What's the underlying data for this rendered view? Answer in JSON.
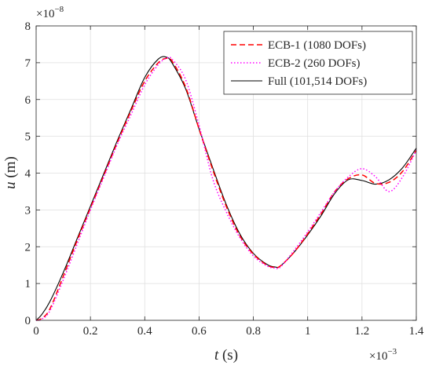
{
  "chart_data": {
    "type": "line",
    "xlabel": {
      "var": "t",
      "unit": " (s)"
    },
    "ylabel": {
      "var": "u",
      "unit": " (m)"
    },
    "x_multiplier": {
      "base": "×10",
      "exp": "−3"
    },
    "y_multiplier": {
      "base": "×10",
      "exp": "−8"
    },
    "xlim": [
      0,
      1.4
    ],
    "ylim": [
      0,
      8
    ],
    "x_ticks": [
      0,
      0.2,
      0.4,
      0.6,
      0.8,
      1,
      1.2,
      1.4
    ],
    "x_tick_labels": [
      "0",
      "0.2",
      "0.4",
      "0.6",
      "0.8",
      "1",
      "1.2",
      "1.4"
    ],
    "y_ticks": [
      0,
      1,
      2,
      3,
      4,
      5,
      6,
      7,
      8
    ],
    "y_tick_labels": [
      "0",
      "1",
      "2",
      "3",
      "4",
      "5",
      "6",
      "7",
      "8"
    ],
    "grid": true,
    "legend_position": "top-right",
    "series": [
      {
        "name": "ECB-1 (1080 DOFs)",
        "color": "#ff0000",
        "dash": "dashed",
        "x": [
          0,
          0.02,
          0.05,
          0.1,
          0.15,
          0.2,
          0.25,
          0.3,
          0.35,
          0.4,
          0.45,
          0.48,
          0.5,
          0.55,
          0.6,
          0.65,
          0.7,
          0.75,
          0.8,
          0.85,
          0.88,
          0.9,
          0.95,
          1.0,
          1.05,
          1.1,
          1.15,
          1.2,
          1.25,
          1.3,
          1.35,
          1.4
        ],
        "y": [
          0,
          0.05,
          0.3,
          1.2,
          2.15,
          3.05,
          3.95,
          4.85,
          5.7,
          6.5,
          7.0,
          7.12,
          7.05,
          6.35,
          5.2,
          4.1,
          3.1,
          2.3,
          1.8,
          1.5,
          1.44,
          1.48,
          1.85,
          2.35,
          2.9,
          3.5,
          3.85,
          3.95,
          3.72,
          3.75,
          4.05,
          4.62
        ]
      },
      {
        "name": "ECB-2 (260 DOFs)",
        "color": "#ff00ff",
        "dash": "dotted",
        "x": [
          0,
          0.02,
          0.05,
          0.1,
          0.15,
          0.2,
          0.25,
          0.3,
          0.35,
          0.4,
          0.45,
          0.48,
          0.5,
          0.55,
          0.6,
          0.65,
          0.7,
          0.75,
          0.8,
          0.85,
          0.88,
          0.9,
          0.95,
          1.0,
          1.05,
          1.1,
          1.15,
          1.2,
          1.25,
          1.3,
          1.35,
          1.4
        ],
        "y": [
          0,
          0.03,
          0.25,
          1.1,
          2.05,
          3.0,
          3.9,
          4.8,
          5.6,
          6.4,
          6.95,
          7.12,
          7.1,
          6.55,
          5.3,
          3.85,
          2.95,
          2.25,
          1.75,
          1.48,
          1.42,
          1.45,
          1.9,
          2.4,
          2.95,
          3.5,
          3.9,
          4.12,
          3.9,
          3.5,
          3.9,
          4.62
        ]
      },
      {
        "name": "Full (101,514 DOFs)",
        "color": "#000000",
        "dash": "solid",
        "x": [
          0,
          0.02,
          0.05,
          0.1,
          0.15,
          0.2,
          0.25,
          0.3,
          0.35,
          0.4,
          0.45,
          0.48,
          0.5,
          0.55,
          0.6,
          0.65,
          0.7,
          0.75,
          0.8,
          0.85,
          0.88,
          0.9,
          0.95,
          1.0,
          1.05,
          1.1,
          1.15,
          1.2,
          1.25,
          1.3,
          1.35,
          1.4
        ],
        "y": [
          0,
          0.15,
          0.5,
          1.3,
          2.2,
          3.1,
          4.0,
          4.9,
          5.75,
          6.6,
          7.1,
          7.15,
          7.0,
          6.3,
          5.2,
          4.15,
          3.15,
          2.35,
          1.82,
          1.52,
          1.45,
          1.48,
          1.85,
          2.32,
          2.85,
          3.45,
          3.82,
          3.8,
          3.7,
          3.82,
          4.15,
          4.68
        ]
      }
    ]
  }
}
